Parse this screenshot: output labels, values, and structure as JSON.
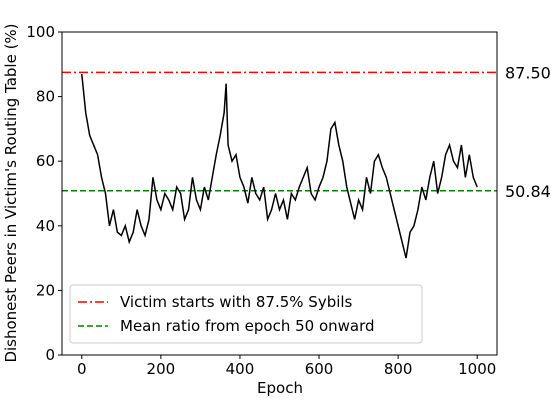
{
  "chart_data": {
    "type": "line",
    "xlabel": "Epoch",
    "ylabel": "Dishonest Peers in Victim's Routing Table (%)",
    "x": [
      0,
      10,
      20,
      30,
      40,
      50,
      60,
      70,
      80,
      90,
      100,
      110,
      120,
      130,
      140,
      150,
      160,
      170,
      180,
      190,
      200,
      210,
      220,
      230,
      240,
      250,
      260,
      270,
      280,
      290,
      300,
      310,
      320,
      330,
      340,
      350,
      360,
      365,
      370,
      380,
      390,
      400,
      410,
      420,
      430,
      440,
      450,
      460,
      470,
      480,
      490,
      500,
      510,
      520,
      530,
      540,
      550,
      560,
      570,
      580,
      590,
      600,
      610,
      620,
      630,
      640,
      650,
      660,
      670,
      680,
      690,
      700,
      710,
      720,
      730,
      740,
      750,
      760,
      770,
      780,
      790,
      800,
      810,
      820,
      830,
      840,
      850,
      860,
      870,
      880,
      890,
      900,
      910,
      920,
      930,
      940,
      950,
      960,
      970,
      980,
      990,
      1000
    ],
    "series": [
      {
        "color": "#000000",
        "values": [
          87,
          75,
          68,
          65,
          62,
          55,
          50,
          40,
          45,
          38,
          37,
          40,
          35,
          38,
          45,
          40,
          37,
          42,
          55,
          48,
          45,
          50,
          48,
          45,
          52,
          50,
          42,
          45,
          55,
          48,
          45,
          52,
          48,
          55,
          62,
          68,
          75,
          84,
          65,
          60,
          62,
          55,
          52,
          47,
          55,
          50,
          48,
          52,
          42,
          45,
          50,
          45,
          48,
          42,
          50,
          48,
          52,
          55,
          58,
          50,
          48,
          52,
          55,
          60,
          70,
          72,
          65,
          60,
          52,
          47,
          42,
          48,
          45,
          55,
          50,
          60,
          62,
          58,
          55,
          50,
          45,
          40,
          35,
          30,
          38,
          40,
          45,
          52,
          48,
          55,
          60,
          50,
          55,
          62,
          65,
          60,
          58,
          65,
          55,
          62,
          55,
          52
        ]
      }
    ],
    "hlines": [
      {
        "name": "Victim starts with 87.5% Sybils",
        "value": 87.5,
        "label": "87.50",
        "color": "#ff0000",
        "style": "dashdot"
      },
      {
        "name": "Mean ratio from epoch 50 onward",
        "value": 50.84,
        "label": "50.84",
        "color": "#008000",
        "style": "dashed"
      }
    ],
    "xlim": [
      -50,
      1050
    ],
    "ylim": [
      0,
      100
    ],
    "xticks": [
      0,
      200,
      400,
      600,
      800,
      1000
    ],
    "yticks": [
      0,
      20,
      40,
      60,
      80,
      100
    ],
    "legend": "lower left"
  }
}
